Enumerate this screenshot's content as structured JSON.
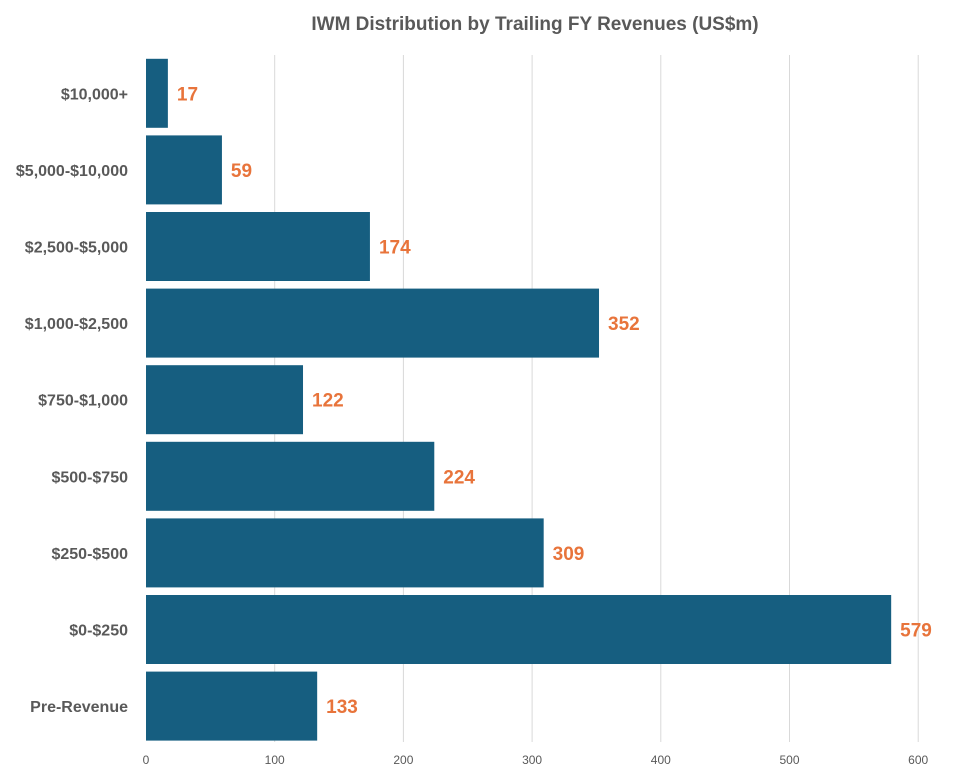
{
  "chart_data": {
    "type": "bar",
    "orientation": "horizontal",
    "title": "IWM Distribution by Trailing FY Revenues (US$m)",
    "xlabel": "",
    "ylabel": "",
    "categories": [
      "$10,000+",
      "$5,000-$10,000",
      "$2,500-$5,000",
      "$1,000-$2,500",
      "$750-$1,000",
      "$500-$750",
      "$250-$500",
      "$0-$250",
      "Pre-Revenue"
    ],
    "values": [
      17,
      59,
      174,
      352,
      122,
      224,
      309,
      579,
      133
    ],
    "xlim": [
      0,
      600
    ],
    "xticks": [
      0,
      100,
      200,
      300,
      400,
      500,
      600
    ],
    "grid": "vertical",
    "legend": "none",
    "bar_color": "#165e80",
    "label_color": "#e8743b"
  }
}
